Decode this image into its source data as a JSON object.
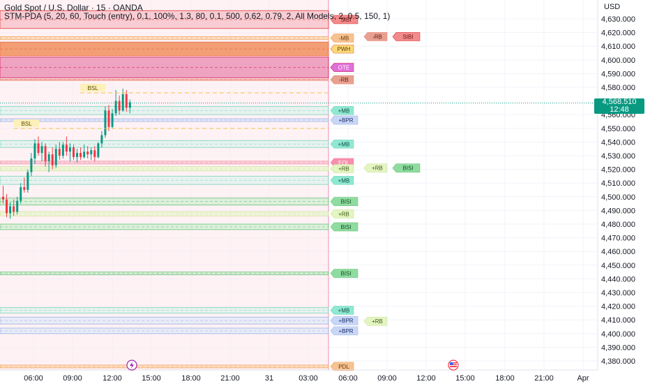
{
  "header": {
    "symbol": "Gold Spot / U.S. Dollar · 15 · OANDA",
    "indicator": "STM-PDA (5, 20, 60, Touch (entry), 0.1, 100%, 1.3, 80, 0.1, 500, 0.62, 0.79, 2, All Models, 2, 0.5, 150, 1)"
  },
  "axis": {
    "currency": "USD",
    "price_ticks": [
      "4,630.000",
      "4,620.000",
      "4,610.000",
      "4,600.000",
      "4,590.000",
      "4,580.000",
      "4,560.000",
      "4,550.000",
      "4,540.000",
      "4,530.000",
      "4,520.000",
      "4,510.000",
      "4,500.000",
      "4,490.000",
      "4,480.000",
      "4,470.000",
      "4,460.000",
      "4,450.000",
      "4,440.000",
      "4,430.000",
      "4,420.000",
      "4,410.000",
      "4,400.000",
      "4,390.000",
      "4,380.000"
    ],
    "price_values": [
      4630,
      4620,
      4610,
      4600,
      4590,
      4580,
      4560,
      4550,
      4540,
      4530,
      4520,
      4510,
      4500,
      4490,
      4480,
      4470,
      4460,
      4450,
      4440,
      4430,
      4420,
      4410,
      4400,
      4390,
      4380
    ],
    "time_ticks": [
      "06:00",
      "09:00",
      "12:00",
      "15:00",
      "18:00",
      "21:00",
      "31",
      "03:00",
      "06:00",
      "09:00",
      "12:00",
      "15:00",
      "18:00",
      "21:00",
      "Apr"
    ]
  },
  "last_price": {
    "value": "4,568.510",
    "countdown": "12:48",
    "price": 4568.51
  },
  "colors": {
    "bull": "#089981",
    "bear": "#f23645",
    "bg_pink": "#fde8ec"
  },
  "zones": [
    {
      "label": "SIBI",
      "top": 4636,
      "bottom": 4623,
      "type": "bearfvg"
    },
    {
      "label": "-MB",
      "top": 4617,
      "bottom": 4615,
      "type": "orange"
    },
    {
      "label": "PWH",
      "top": 4613,
      "bottom": 4603,
      "type": "orangeStrong"
    },
    {
      "label": "OTE",
      "top": 4602,
      "bottom": 4587,
      "type": "magenta"
    },
    {
      "label": "-RB",
      "top": 4586,
      "bottom": 4585,
      "type": "salmon"
    },
    {
      "label": "+MB",
      "top": 4566,
      "bottom": 4560,
      "type": "teal"
    },
    {
      "label": "+BPR",
      "top": 4557,
      "bottom": 4555,
      "type": "blue"
    },
    {
      "label": "+MB",
      "top": 4541,
      "bottom": 4536,
      "type": "teal"
    },
    {
      "label": "EQL",
      "top": 4526,
      "bottom": 4524,
      "type": "pink"
    },
    {
      "label": "+RB",
      "top": 4522,
      "bottom": 4519,
      "type": "lime"
    },
    {
      "label": "+MB",
      "top": 4515,
      "bottom": 4509,
      "type": "teal"
    },
    {
      "label": "BISI",
      "top": 4499,
      "bottom": 4494,
      "type": "green"
    },
    {
      "label": "+RB",
      "top": 4489,
      "bottom": 4486,
      "type": "lime"
    },
    {
      "label": "BISI",
      "top": 4480,
      "bottom": 4476,
      "type": "green"
    },
    {
      "label": "BISI",
      "top": 4445,
      "bottom": 4443,
      "type": "green"
    },
    {
      "label": "+MB",
      "top": 4419,
      "bottom": 4415,
      "type": "teal"
    },
    {
      "label": "+BPR",
      "top": 4412,
      "bottom": 4407,
      "type": "blue"
    },
    {
      "label": "+BPR",
      "top": 4404,
      "bottom": 4400,
      "type": "blue"
    },
    {
      "label": "PDL",
      "top": 4377,
      "bottom": 4375,
      "type": "orange"
    }
  ],
  "extra_labels": [
    {
      "label": "-RB",
      "price": 4617,
      "col": 2,
      "type": "salmon"
    },
    {
      "label": "SIBI",
      "price": 4617,
      "col": 3,
      "type": "bearfvg"
    },
    {
      "label": "+RB",
      "price": 4521,
      "col": 2,
      "type": "lime"
    },
    {
      "label": "BISI",
      "price": 4521,
      "col": 3,
      "type": "green"
    },
    {
      "label": "+RB",
      "price": 4409,
      "col": 2,
      "type": "lime"
    }
  ],
  "liquidity": [
    {
      "label": "BSL",
      "price": 4580
    },
    {
      "label": "BSL",
      "price": 4554
    }
  ],
  "candles": [
    [
      4500,
      4508,
      4495,
      4498
    ],
    [
      4498,
      4502,
      4485,
      4488
    ],
    [
      4488,
      4496,
      4484,
      4493
    ],
    [
      4493,
      4498,
      4486,
      4489
    ],
    [
      4489,
      4500,
      4487,
      4497
    ],
    [
      4497,
      4510,
      4495,
      4507
    ],
    [
      4507,
      4514,
      4503,
      4505
    ],
    [
      4505,
      4520,
      4503,
      4518
    ],
    [
      4518,
      4532,
      4515,
      4528
    ],
    [
      4528,
      4542,
      4524,
      4539
    ],
    [
      4539,
      4544,
      4530,
      4532
    ],
    [
      4532,
      4540,
      4526,
      4537
    ],
    [
      4537,
      4539,
      4522,
      4526
    ],
    [
      4526,
      4533,
      4518,
      4531
    ],
    [
      4531,
      4536,
      4520,
      4523
    ],
    [
      4523,
      4538,
      4521,
      4535
    ],
    [
      4535,
      4540,
      4527,
      4530
    ],
    [
      4530,
      4540,
      4528,
      4538
    ],
    [
      4538,
      4544,
      4530,
      4533
    ],
    [
      4533,
      4539,
      4526,
      4536
    ],
    [
      4536,
      4538,
      4527,
      4529
    ],
    [
      4529,
      4535,
      4525,
      4532
    ],
    [
      4532,
      4536,
      4527,
      4529
    ],
    [
      4529,
      4538,
      4528,
      4533
    ],
    [
      4533,
      4537,
      4528,
      4531
    ],
    [
      4531,
      4536,
      4527,
      4534
    ],
    [
      4534,
      4537,
      4526,
      4529
    ],
    [
      4529,
      4540,
      4528,
      4539
    ],
    [
      4539,
      4548,
      4536,
      4545
    ],
    [
      4545,
      4566,
      4543,
      4563
    ],
    [
      4563,
      4567,
      4548,
      4551
    ],
    [
      4551,
      4564,
      4550,
      4561
    ],
    [
      4561,
      4578,
      4559,
      4570
    ],
    [
      4570,
      4574,
      4560,
      4563
    ],
    [
      4563,
      4579,
      4562,
      4575
    ],
    [
      4575,
      4578,
      4562,
      4565
    ],
    [
      4565,
      4571,
      4561,
      4569
    ]
  ]
}
